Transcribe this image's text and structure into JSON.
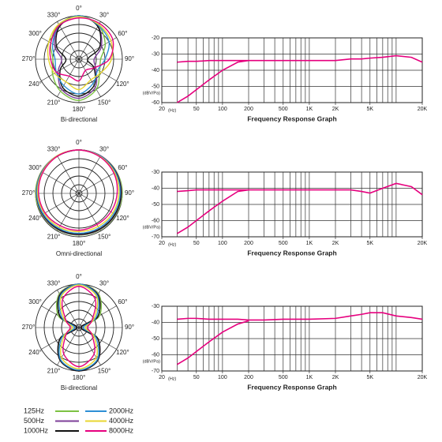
{
  "chart_data": [
    {
      "type": "polar",
      "caption": "Bi-directional",
      "categories": [
        "0°",
        "30°",
        "60°",
        "90°",
        "120°",
        "150°",
        "180°",
        "210°",
        "240°",
        "270°",
        "300°",
        "330°"
      ],
      "rlim": [
        0,
        1
      ],
      "rgrid": [
        0.2,
        0.4,
        0.6,
        0.8,
        1.0
      ],
      "series": [
        {
          "name": "125Hz",
          "color": "#7cc242",
          "values": [
            1,
            0.9,
            0.7,
            0.5,
            0.55,
            0.8,
            0.95,
            0.85,
            0.7,
            0.6,
            0.75,
            0.92
          ]
        },
        {
          "name": "500Hz",
          "color": "#7d3f98",
          "values": [
            1,
            0.88,
            0.6,
            0.35,
            0.45,
            0.75,
            0.9,
            0.8,
            0.55,
            0.4,
            0.65,
            0.9
          ]
        },
        {
          "name": "1000Hz",
          "color": "#111111",
          "values": [
            1,
            0.87,
            0.55,
            0.2,
            0.4,
            0.7,
            0.85,
            0.75,
            0.5,
            0.3,
            0.6,
            0.88
          ]
        },
        {
          "name": "2000Hz",
          "color": "#2d8fd5",
          "values": [
            1,
            0.9,
            0.8,
            0.6,
            0.5,
            0.65,
            0.8,
            0.7,
            0.6,
            0.55,
            0.7,
            0.9
          ]
        },
        {
          "name": "4000Hz",
          "color": "#e8d630",
          "values": [
            0.98,
            0.92,
            0.85,
            0.75,
            0.6,
            0.55,
            0.7,
            0.6,
            0.65,
            0.7,
            0.8,
            0.93
          ]
        },
        {
          "name": "8000Hz",
          "color": "#e6007e",
          "values": [
            0.95,
            0.95,
            0.9,
            0.7,
            0.4,
            0.3,
            0.5,
            0.45,
            0.6,
            0.65,
            0.75,
            0.9
          ]
        }
      ]
    },
    {
      "type": "line",
      "title": "Frequency Response Graph",
      "x_unit": "(Hz)",
      "y_unit": "(dBV/Pa)",
      "log_x": true,
      "xlim": [
        20,
        20000
      ],
      "xticks": [
        20,
        50,
        100,
        200,
        500,
        {
          "value": 1000,
          "label": "1K"
        },
        {
          "value": 2000,
          "label": "2K"
        },
        {
          "value": 5000,
          "label": "5K"
        },
        {
          "value": 20000,
          "label": "20K"
        }
      ],
      "xgrid": [
        20,
        30,
        40,
        50,
        60,
        70,
        80,
        90,
        100,
        200,
        300,
        400,
        500,
        600,
        700,
        800,
        900,
        1000,
        2000,
        3000,
        4000,
        5000,
        6000,
        7000,
        8000,
        9000,
        10000,
        20000
      ],
      "ylim": [
        -60,
        -20
      ],
      "yticks": [
        -20,
        -30,
        -40,
        -50,
        -60
      ],
      "x": [
        30,
        40,
        50,
        70,
        100,
        150,
        200,
        300,
        500,
        1000,
        2000,
        3000,
        4000,
        5000,
        7000,
        10000,
        15000,
        20000
      ],
      "series": [
        {
          "color": "#e6007e",
          "values": [
            -35,
            -34.5,
            -34.5,
            -34,
            -34,
            -34,
            -34,
            -34,
            -34,
            -34,
            -34,
            -33,
            -33,
            -32.5,
            -32,
            -31,
            -32,
            -35
          ]
        },
        {
          "color": "#e6007e",
          "values": [
            -60,
            -56,
            -52,
            -46,
            -40,
            -35,
            -34,
            null,
            null,
            null,
            null,
            null,
            null,
            null,
            null,
            null,
            null,
            null
          ]
        }
      ]
    },
    {
      "type": "polar",
      "caption": "Omni-directional",
      "categories": [
        "0°",
        "30°",
        "60°",
        "90°",
        "120°",
        "150°",
        "180°",
        "210°",
        "240°",
        "270°",
        "300°",
        "330°"
      ],
      "rlim": [
        0,
        1
      ],
      "rgrid": [
        0.2,
        0.4,
        0.6,
        0.8,
        1.0
      ],
      "series": [
        {
          "name": "125Hz",
          "color": "#7cc242",
          "values": [
            1,
            1,
            1,
            1,
            0.98,
            0.97,
            0.96,
            0.97,
            0.98,
            1,
            1,
            1
          ]
        },
        {
          "name": "500Hz",
          "color": "#7d3f98",
          "values": [
            1,
            1,
            0.99,
            0.98,
            0.97,
            0.96,
            0.95,
            0.96,
            0.97,
            0.98,
            0.99,
            1
          ]
        },
        {
          "name": "1000Hz",
          "color": "#111111",
          "values": [
            1,
            0.99,
            0.98,
            0.97,
            0.96,
            0.95,
            0.94,
            0.95,
            0.96,
            0.97,
            0.98,
            0.99
          ]
        },
        {
          "name": "2000Hz",
          "color": "#2d8fd5",
          "values": [
            1,
            0.99,
            0.97,
            0.95,
            0.93,
            0.92,
            0.92,
            0.93,
            0.95,
            0.97,
            0.98,
            1
          ]
        },
        {
          "name": "4000Hz",
          "color": "#e8d630",
          "values": [
            1,
            0.98,
            0.95,
            0.92,
            0.9,
            0.88,
            0.88,
            0.9,
            0.92,
            0.95,
            0.97,
            1
          ]
        },
        {
          "name": "8000Hz",
          "color": "#e6007e",
          "values": [
            1,
            0.97,
            0.93,
            0.88,
            0.85,
            0.83,
            0.85,
            0.86,
            0.9,
            0.93,
            0.96,
            0.99
          ]
        }
      ]
    },
    {
      "type": "line",
      "title": "Frequency Response Graph",
      "x_unit": "(Hz)",
      "y_unit": "(dBV/Pa)",
      "log_x": true,
      "xlim": [
        20,
        20000
      ],
      "xticks": [
        20,
        50,
        100,
        200,
        500,
        {
          "value": 1000,
          "label": "1K"
        },
        {
          "value": 2000,
          "label": "2K"
        },
        {
          "value": 5000,
          "label": "5K"
        },
        {
          "value": 20000,
          "label": "20K"
        }
      ],
      "xgrid": [
        20,
        30,
        40,
        50,
        60,
        70,
        80,
        90,
        100,
        200,
        300,
        400,
        500,
        600,
        700,
        800,
        900,
        1000,
        2000,
        3000,
        4000,
        5000,
        6000,
        7000,
        8000,
        9000,
        10000,
        20000
      ],
      "ylim": [
        -70,
        -30
      ],
      "yticks": [
        -30,
        -40,
        -50,
        -60,
        -70
      ],
      "x": [
        30,
        40,
        50,
        70,
        100,
        150,
        200,
        300,
        500,
        1000,
        2000,
        3000,
        4000,
        5000,
        7000,
        10000,
        15000,
        20000
      ],
      "series": [
        {
          "color": "#e6007e",
          "values": [
            -42,
            -41.5,
            -41,
            -41,
            -41,
            -41,
            -41,
            -41,
            -41,
            -41,
            -41,
            -41,
            -42,
            -43,
            -40,
            -37,
            -39,
            -44
          ]
        },
        {
          "color": "#e6007e",
          "values": [
            -68,
            -64,
            -60,
            -54,
            -48,
            -42,
            -41,
            null,
            null,
            null,
            null,
            null,
            null,
            null,
            null,
            null,
            null,
            null
          ]
        }
      ]
    },
    {
      "type": "polar",
      "caption": "Bi-directional",
      "categories": [
        "0°",
        "30°",
        "60°",
        "90°",
        "120°",
        "150°",
        "180°",
        "210°",
        "240°",
        "270°",
        "300°",
        "330°"
      ],
      "rlim": [
        0,
        1
      ],
      "rgrid": [
        0.2,
        0.4,
        0.6,
        0.8,
        1.0
      ],
      "series": [
        {
          "name": "125Hz",
          "color": "#7cc242",
          "values": [
            1,
            0.9,
            0.55,
            0.1,
            0.5,
            0.85,
            1,
            0.85,
            0.5,
            0.1,
            0.55,
            0.9
          ]
        },
        {
          "name": "500Hz",
          "color": "#7d3f98",
          "values": [
            1,
            0.88,
            0.5,
            0.05,
            0.5,
            0.87,
            1,
            0.87,
            0.5,
            0.05,
            0.5,
            0.88
          ]
        },
        {
          "name": "1000Hz",
          "color": "#111111",
          "values": [
            1,
            0.87,
            0.5,
            0.05,
            0.5,
            0.87,
            1,
            0.87,
            0.5,
            0.05,
            0.5,
            0.87
          ]
        },
        {
          "name": "2000Hz",
          "color": "#2d8fd5",
          "values": [
            1,
            0.85,
            0.45,
            0.1,
            0.45,
            0.85,
            0.98,
            0.85,
            0.45,
            0.1,
            0.45,
            0.85
          ]
        },
        {
          "name": "4000Hz",
          "color": "#e8d630",
          "values": [
            0.98,
            0.82,
            0.4,
            0.15,
            0.4,
            0.8,
            0.95,
            0.8,
            0.4,
            0.15,
            0.4,
            0.82
          ]
        },
        {
          "name": "8000Hz",
          "color": "#e6007e",
          "values": [
            0.95,
            0.75,
            0.35,
            0.2,
            0.35,
            0.7,
            0.9,
            0.7,
            0.35,
            0.2,
            0.35,
            0.75
          ]
        }
      ]
    },
    {
      "type": "line",
      "title": "Frequency Response Graph",
      "x_unit": "(Hz)",
      "y_unit": "(dBV/Pa)",
      "log_x": true,
      "xlim": [
        20,
        20000
      ],
      "xticks": [
        20,
        50,
        100,
        200,
        500,
        {
          "value": 1000,
          "label": "1K"
        },
        {
          "value": 2000,
          "label": "2K"
        },
        {
          "value": 5000,
          "label": "5K"
        },
        {
          "value": 20000,
          "label": "20K"
        }
      ],
      "xgrid": [
        20,
        30,
        40,
        50,
        60,
        70,
        80,
        90,
        100,
        200,
        300,
        400,
        500,
        600,
        700,
        800,
        900,
        1000,
        2000,
        3000,
        4000,
        5000,
        6000,
        7000,
        8000,
        9000,
        10000,
        20000
      ],
      "ylim": [
        -70,
        -30
      ],
      "yticks": [
        -30,
        -40,
        -50,
        -60,
        -70
      ],
      "x": [
        30,
        40,
        50,
        70,
        100,
        150,
        200,
        300,
        500,
        1000,
        2000,
        3000,
        4000,
        5000,
        7000,
        10000,
        15000,
        20000
      ],
      "series": [
        {
          "color": "#e6007e",
          "values": [
            -38,
            -37.5,
            -37.5,
            -38,
            -38,
            -38,
            -38.5,
            -38.5,
            -38,
            -38,
            -37.5,
            -36,
            -35,
            -34,
            -34,
            -36,
            -37,
            -38
          ]
        },
        {
          "color": "#e6007e",
          "values": [
            -66,
            -62,
            -58,
            -52,
            -46,
            -41,
            -39,
            null,
            null,
            null,
            null,
            null,
            null,
            null,
            null,
            null,
            null,
            null
          ]
        }
      ]
    }
  ]
}
